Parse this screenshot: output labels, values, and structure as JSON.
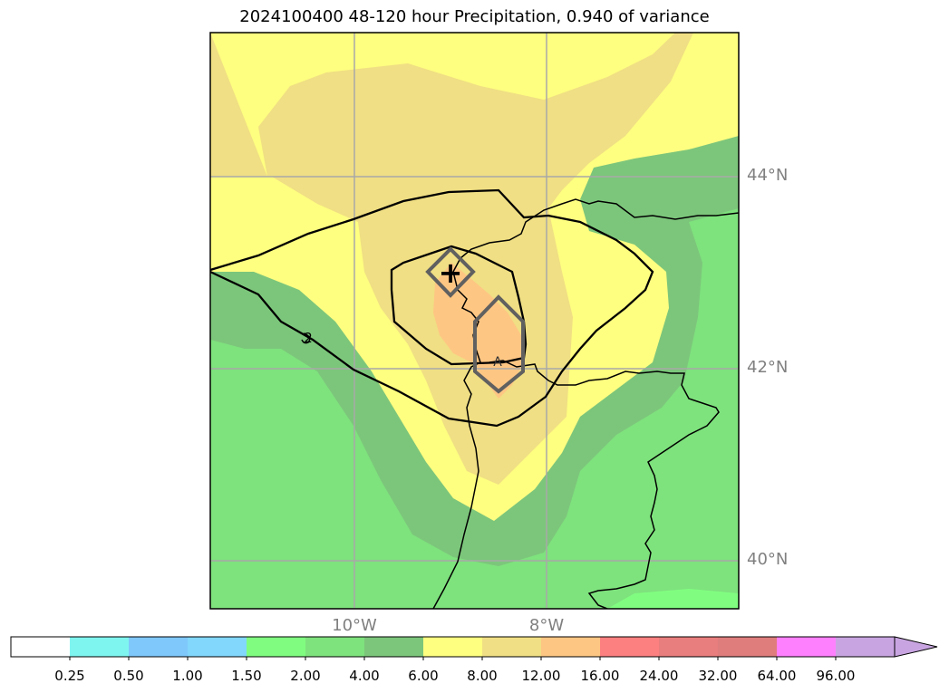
{
  "title": "2024100400 48-120 hour Precipitation, 0.940 of variance",
  "lat_labels": [
    "44°N",
    "42°N",
    "40°N"
  ],
  "lon_labels": [
    "10°W",
    "8°W"
  ],
  "colorbar": {
    "colors": [
      "#ffffff",
      "#7ff5f0",
      "#7fc8fb",
      "#82d7fc",
      "#80fd80",
      "#7ee27d",
      "#7cc67b",
      "#fefe80",
      "#f0df84",
      "#fec683",
      "#fd8080",
      "#e87e7d",
      "#df7d7d",
      "#fe80fe",
      "#c8a5e1"
    ],
    "tick_labels": [
      "0.25",
      "0.50",
      "1.00",
      "1.50",
      "2.00",
      "4.00",
      "6.00",
      "8.00",
      "12.00",
      "16.00",
      "24.00",
      "32.00",
      "64.00",
      "96.00"
    ],
    "extend": "max"
  },
  "markers": {
    "max_symbol": "+",
    "contour_label": "2"
  }
}
